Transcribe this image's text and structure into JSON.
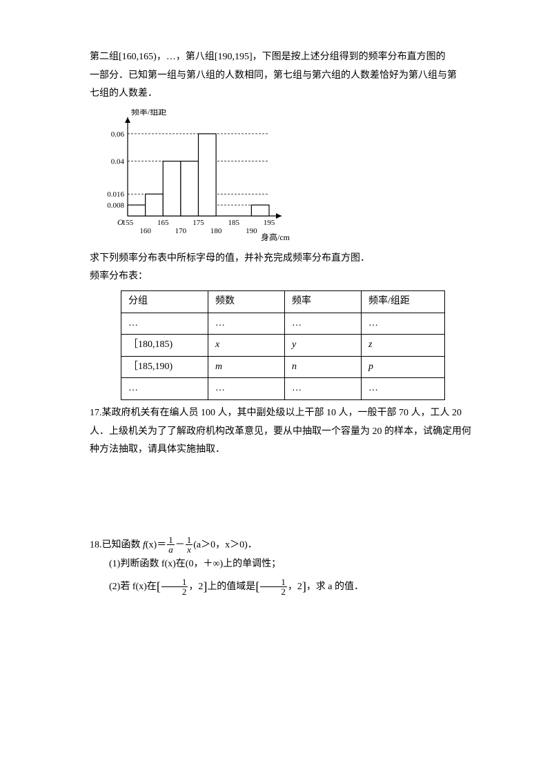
{
  "intro": {
    "line1": "第二组[160,165)，…，第八组[190,195]，下图是按上述分组得到的频率分布直方图的",
    "line2": "一部分．已知第一组与第八组的人数相同，第七组与第六组的人数差恰好为第八组与第",
    "line3": "七组的人数差．"
  },
  "histogram": {
    "ylabel": "频率/组距",
    "xlabel": "身高/cm",
    "yticks": [
      "0.008",
      "0.016",
      "0.04",
      "0.06"
    ],
    "ytick_vals": [
      0.008,
      0.016,
      0.04,
      0.06
    ],
    "xticks_top": [
      "155",
      "165",
      "175",
      "185",
      "195"
    ],
    "xticks_bot": [
      "160",
      "170",
      "180",
      "190"
    ],
    "bars": [
      {
        "x": 155,
        "h": 0.008
      },
      {
        "x": 160,
        "h": 0.016
      },
      {
        "x": 165,
        "h": 0.04
      },
      {
        "x": 170,
        "h": 0.04
      },
      {
        "x": 175,
        "h": 0.06
      },
      {
        "x": 190,
        "h": 0.008
      }
    ],
    "ymax": 0.068,
    "axis_color": "#000000",
    "dash_color": "#000000",
    "bar_fill": "#ffffff",
    "bar_stroke": "#000000",
    "font_size": 12,
    "origin_label": "O"
  },
  "after_hist": "求下列频率分布表中所标字母的值，并补充完成频率分布直方图．",
  "table_title": "频率分布表：",
  "table": {
    "headers": [
      "分组",
      "频数",
      "频率",
      "频率/组距"
    ],
    "rows": [
      [
        "…",
        "…",
        "…",
        "…"
      ],
      [
        "［180,185)",
        "x",
        "y",
        "z"
      ],
      [
        "［185,190)",
        "m",
        "n",
        "p"
      ],
      [
        "…",
        "…",
        "…",
        "…"
      ]
    ],
    "italic_cells": [
      [
        2,
        1
      ],
      [
        2,
        2
      ],
      [
        2,
        3
      ],
      [
        3,
        1
      ],
      [
        3,
        2
      ],
      [
        3,
        3
      ]
    ]
  },
  "q17": {
    "text1": "17.某政府机关有在编人员 100 人，其中副处级以上干部 10 人，一般干部 70 人，工人 20",
    "text2": "人．上级机关为了了解政府机构改革意见，要从中抽取一个容量为 20 的样本，试确定用何",
    "text3": "种方法抽取，请具体实施抽取．"
  },
  "q18": {
    "l1a": "18.已知函数 ",
    "l1b_fx": "f",
    "l1b_x": "(x)＝",
    "l1c": "(a＞0，x＞0)．",
    "frac1_num": "1",
    "frac1_den": "a",
    "frac2_num": "1",
    "frac2_den": "x",
    "minus": "－",
    "l2": "(1)判断函数 f(x)在(0，＋∞)上的单调性；",
    "l3a": "(2)若 f(x)在",
    "l3b": "上的值域是",
    "l3c": "，求 a 的值．",
    "br_num1": "1",
    "br_den1": "2",
    "br_right": "2"
  }
}
